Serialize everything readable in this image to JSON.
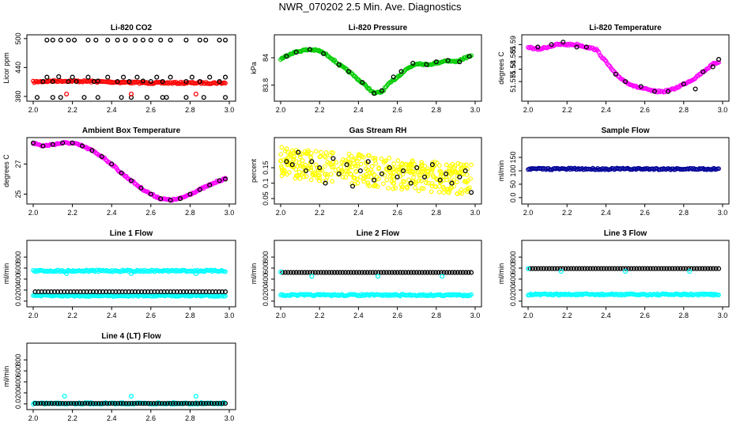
{
  "page_title": "NWR_070202  2.5 Min. Ave. Diagnostics",
  "chart_data": [
    {
      "id": "co2",
      "type": "scatter",
      "title": "Li-820 CO2",
      "ylabel": "Licor ppm",
      "xlim": [
        2.0,
        3.0
      ],
      "ylim": [
        375,
        503
      ],
      "xticks": [
        2.0,
        2.2,
        2.4,
        2.6,
        2.8,
        3.0
      ],
      "yticks": [
        380,
        440,
        500
      ],
      "series": [
        {
          "name": "values",
          "color": "#ff0000",
          "shape": "dense",
          "x0": 2.0,
          "x1": 2.98,
          "y": [
            410,
            412,
            412,
            411,
            410,
            409,
            408,
            408,
            408,
            408,
            408
          ]
        },
        {
          "name": "reference",
          "color": "#000000",
          "shape": "ring",
          "x": [
            2.07,
            2.1,
            2.14,
            2.18,
            2.21,
            2.28,
            2.32,
            2.38,
            2.43,
            2.47,
            2.52,
            2.56,
            2.6,
            2.65,
            2.7,
            2.78,
            2.85,
            2.88,
            2.95,
            2.98
          ],
          "y": [
            497,
            497,
            497,
            497,
            497,
            497,
            497,
            497,
            497,
            497,
            497,
            497,
            497,
            497,
            497,
            497,
            497,
            497,
            497,
            497
          ]
        },
        {
          "name": "reference",
          "color": "#000000",
          "shape": "ring",
          "x": [
            2.05,
            2.07,
            2.1,
            2.13,
            2.18,
            2.2,
            2.22,
            2.28,
            2.31,
            2.33,
            2.38,
            2.43,
            2.46,
            2.49,
            2.53,
            2.56,
            2.6,
            2.63,
            2.66,
            2.7,
            2.78,
            2.81,
            2.85,
            2.9,
            2.95,
            2.98
          ],
          "y": [
            411,
            420,
            411,
            421,
            411,
            420,
            411,
            420,
            411,
            412,
            420,
            411,
            420,
            411,
            420,
            412,
            411,
            420,
            411,
            420,
            411,
            420,
            411,
            420,
            411,
            420
          ]
        },
        {
          "name": "reference",
          "color": "#000000",
          "shape": "ring",
          "x": [
            2.02,
            2.1,
            2.14,
            2.26,
            2.33,
            2.45,
            2.5,
            2.58,
            2.66,
            2.68,
            2.78,
            2.87,
            2.98
          ],
          "y": [
            378,
            378,
            378,
            378,
            378,
            378,
            378,
            378,
            378,
            378,
            378,
            378,
            378
          ]
        },
        {
          "name": "reference",
          "color": "#ff0000",
          "shape": "ring",
          "x": [
            2.17,
            2.5,
            2.83
          ],
          "y": [
            385,
            385,
            385
          ]
        }
      ]
    },
    {
      "id": "pressure",
      "type": "scatter",
      "title": "Li-820 Pressure",
      "ylabel": "kPa",
      "xlim": [
        2.0,
        3.0
      ],
      "ylim": [
        83.7,
        84.15
      ],
      "xticks": [
        2.0,
        2.2,
        2.4,
        2.6,
        2.8,
        3.0
      ],
      "yticks": [
        83.8,
        84.0
      ],
      "series": [
        {
          "name": "values",
          "color": "#00cc00",
          "shape": "dense",
          "x": [
            2.0,
            2.05,
            2.1,
            2.15,
            2.2,
            2.25,
            2.3,
            2.35,
            2.4,
            2.45,
            2.48,
            2.52,
            2.55,
            2.6,
            2.65,
            2.7,
            2.75,
            2.8,
            2.85,
            2.9,
            2.95,
            2.98
          ],
          "y": [
            83.99,
            84.03,
            84.05,
            84.06,
            84.05,
            84.01,
            83.95,
            83.9,
            83.84,
            83.78,
            83.74,
            83.75,
            83.8,
            83.86,
            83.92,
            83.96,
            83.95,
            83.96,
            83.98,
            83.97,
            84.0,
            84.01
          ]
        },
        {
          "name": "reference",
          "color": "#000000",
          "shape": "ring",
          "x": [
            2.03,
            2.08,
            2.15,
            2.22,
            2.3,
            2.35,
            2.42,
            2.48,
            2.52,
            2.58,
            2.62,
            2.68,
            2.75,
            2.8,
            2.86,
            2.92,
            2.97
          ],
          "y": [
            84.01,
            84.04,
            84.06,
            84.03,
            83.95,
            83.9,
            83.82,
            83.74,
            83.76,
            83.86,
            83.9,
            83.96,
            83.95,
            83.97,
            83.98,
            83.97,
            84.01
          ]
        }
      ]
    },
    {
      "id": "licor_temp",
      "type": "scatter",
      "title": "Li-820 Temperature",
      "ylabel": "degrees C",
      "xlim": [
        2.0,
        3.0
      ],
      "ylim": [
        51.568,
        51.593
      ],
      "xticks": [
        2.0,
        2.2,
        2.4,
        2.6,
        2.8,
        3.0
      ],
      "yticks": [
        51.575,
        51.58,
        51.585,
        51.59
      ],
      "series": [
        {
          "name": "values",
          "color": "#ff00ff",
          "shape": "dense",
          "x": [
            2.0,
            2.05,
            2.1,
            2.15,
            2.2,
            2.25,
            2.3,
            2.35,
            2.4,
            2.45,
            2.5,
            2.55,
            2.6,
            2.65,
            2.7,
            2.75,
            2.8,
            2.85,
            2.9,
            2.95,
            2.98
          ],
          "y": [
            51.589,
            51.588,
            51.589,
            51.59,
            51.59,
            51.59,
            51.589,
            51.588,
            51.583,
            51.578,
            51.575,
            51.573,
            51.572,
            51.571,
            51.571,
            51.572,
            51.574,
            51.576,
            51.579,
            51.582,
            51.583
          ]
        },
        {
          "name": "reference",
          "color": "#000000",
          "shape": "ring",
          "x": [
            2.05,
            2.12,
            2.18,
            2.25,
            2.3,
            2.45,
            2.5,
            2.58,
            2.65,
            2.72,
            2.8,
            2.86,
            2.9,
            2.95,
            2.98
          ],
          "y": [
            51.589,
            51.59,
            51.591,
            51.589,
            51.589,
            51.578,
            51.575,
            51.573,
            51.571,
            51.571,
            51.574,
            51.572,
            51.579,
            51.581,
            51.584
          ]
        }
      ]
    },
    {
      "id": "box_temp",
      "type": "scatter",
      "title": "Ambient Box Temperature",
      "ylabel": "degrees C",
      "xlim": [
        2.0,
        3.0
      ],
      "ylim": [
        24.5,
        28.6
      ],
      "xticks": [
        2.0,
        2.2,
        2.4,
        2.6,
        2.8,
        3.0
      ],
      "yticks": [
        25,
        27
      ],
      "series": [
        {
          "name": "values",
          "color": "#ff00ff",
          "shape": "dense",
          "x": [
            2.0,
            2.05,
            2.1,
            2.15,
            2.2,
            2.25,
            2.3,
            2.35,
            2.4,
            2.45,
            2.5,
            2.55,
            2.6,
            2.65,
            2.7,
            2.75,
            2.8,
            2.85,
            2.9,
            2.95,
            2.98
          ],
          "y": [
            28.4,
            28.2,
            28.3,
            28.4,
            28.4,
            28.2,
            27.9,
            27.5,
            27.0,
            26.4,
            25.9,
            25.4,
            25.0,
            24.7,
            24.6,
            24.7,
            25.0,
            25.3,
            25.6,
            25.9,
            26.0
          ]
        },
        {
          "name": "reference",
          "color": "#000000",
          "shape": "ring",
          "x": [
            2.0,
            2.05,
            2.1,
            2.15,
            2.2,
            2.25,
            2.3,
            2.35,
            2.4,
            2.45,
            2.5,
            2.55,
            2.6,
            2.65,
            2.7,
            2.75,
            2.8,
            2.85,
            2.9,
            2.95,
            2.98
          ],
          "y": [
            28.4,
            28.2,
            28.3,
            28.4,
            28.4,
            28.2,
            27.9,
            27.5,
            27.0,
            26.4,
            25.9,
            25.4,
            25.0,
            24.7,
            24.6,
            24.7,
            25.0,
            25.3,
            25.6,
            25.9,
            26.0
          ]
        }
      ]
    },
    {
      "id": "rh",
      "type": "scatter",
      "title": "Gas Stream RH",
      "ylabel": "percent",
      "xlim": [
        2.0,
        3.0
      ],
      "ylim": [
        0.04,
        0.24
      ],
      "xticks": [
        2.0,
        2.2,
        2.4,
        2.6,
        2.8,
        3.0
      ],
      "yticks": [
        0.05,
        0.1,
        0.15
      ],
      "series": [
        {
          "name": "values",
          "color": "#ffff00",
          "shape": "cloud",
          "x": [
            2.0,
            2.2,
            2.4,
            2.6,
            2.8,
            2.98
          ],
          "y": [
            0.17,
            0.155,
            0.145,
            0.13,
            0.12,
            0.11
          ],
          "spread": 0.05
        },
        {
          "name": "reference",
          "color": "#000000",
          "shape": "ring",
          "x": [
            2.03,
            2.06,
            2.09,
            2.13,
            2.16,
            2.2,
            2.23,
            2.27,
            2.3,
            2.34,
            2.37,
            2.41,
            2.45,
            2.48,
            2.52,
            2.56,
            2.6,
            2.63,
            2.67,
            2.7,
            2.74,
            2.78,
            2.82,
            2.85,
            2.88,
            2.92,
            2.95,
            2.98
          ],
          "y": [
            0.17,
            0.16,
            0.2,
            0.14,
            0.17,
            0.15,
            0.1,
            0.18,
            0.13,
            0.16,
            0.09,
            0.14,
            0.17,
            0.11,
            0.13,
            0.15,
            0.12,
            0.14,
            0.1,
            0.15,
            0.12,
            0.16,
            0.11,
            0.13,
            0.1,
            0.12,
            0.14,
            0.07
          ]
        }
      ]
    },
    {
      "id": "sample_flow",
      "type": "scatter",
      "title": "Sample Flow",
      "ylabel": "ml/min",
      "xlim": [
        2.0,
        3.0
      ],
      "ylim": [
        -15,
        215
      ],
      "xticks": [
        2.0,
        2.2,
        2.4,
        2.6,
        2.8,
        3.0
      ],
      "yticks": [
        0,
        50,
        100,
        150
      ],
      "series": [
        {
          "name": "values",
          "color": "#000099",
          "shape": "dense",
          "x0": 2.0,
          "x1": 2.98,
          "y": [
            107,
            107,
            107,
            107,
            107,
            107,
            107,
            107,
            107,
            107,
            107
          ]
        }
      ]
    },
    {
      "id": "line1",
      "type": "scatter",
      "title": "Line 1 Flow",
      "ylabel": "ml/min",
      "xlim": [
        2.0,
        3.0
      ],
      "ylim": [
        -60,
        1060
      ],
      "xticks": [
        2.0,
        2.2,
        2.4,
        2.6,
        2.8,
        3.0
      ],
      "yticks": [
        0,
        200,
        400,
        600,
        800
      ],
      "series": [
        {
          "name": "upper",
          "color": "#00ffff",
          "shape": "dense",
          "x0": 2.0,
          "x1": 2.98,
          "y": [
            550,
            550,
            550,
            550,
            550,
            550,
            550,
            550,
            550,
            550,
            550
          ]
        },
        {
          "name": "lower",
          "color": "#00ffff",
          "shape": "dense",
          "x0": 2.0,
          "x1": 2.98,
          "y": [
            100,
            100,
            100,
            100,
            100,
            100,
            100,
            100,
            100,
            100,
            100
          ]
        },
        {
          "name": "reference",
          "color": "#000000",
          "shape": "ring",
          "x0": 2.01,
          "x1": 2.98,
          "n": 60,
          "yconst": 170
        },
        {
          "name": "outliers",
          "color": "#00ffff",
          "shape": "ring",
          "x": [
            2.17,
            2.5,
            2.83
          ],
          "y": [
            500,
            500,
            500
          ]
        }
      ]
    },
    {
      "id": "line2",
      "type": "scatter",
      "title": "Line 2 Flow",
      "ylabel": "ml/min",
      "xlim": [
        2.0,
        3.0
      ],
      "ylim": [
        -60,
        1060
      ],
      "xticks": [
        2.0,
        2.2,
        2.4,
        2.6,
        2.8,
        3.0
      ],
      "yticks": [
        0,
        200,
        400,
        600,
        800
      ],
      "series": [
        {
          "name": "lower",
          "color": "#00ffff",
          "shape": "dense",
          "x0": 2.0,
          "x1": 2.98,
          "y": [
            110,
            110,
            110,
            110,
            110,
            110,
            110,
            110,
            110,
            110,
            110
          ]
        },
        {
          "name": "reference",
          "color": "#000000",
          "shape": "ring",
          "x0": 2.01,
          "x1": 2.98,
          "n": 70,
          "yconst": 520
        },
        {
          "name": "outliers",
          "color": "#00ffff",
          "shape": "ring",
          "x": [
            2.0,
            2.16,
            2.5,
            2.83
          ],
          "y": [
            530,
            450,
            450,
            450
          ]
        }
      ]
    },
    {
      "id": "line3",
      "type": "scatter",
      "title": "Line 3 Flow",
      "ylabel": "ml/min",
      "xlim": [
        2.0,
        3.0
      ],
      "ylim": [
        -60,
        1060
      ],
      "xticks": [
        2.0,
        2.2,
        2.4,
        2.6,
        2.8,
        3.0
      ],
      "yticks": [
        0,
        200,
        400,
        600,
        800
      ],
      "series": [
        {
          "name": "lower",
          "color": "#00ffff",
          "shape": "dense",
          "x0": 2.0,
          "x1": 2.98,
          "y": [
            120,
            120,
            120,
            120,
            120,
            120,
            120,
            120,
            120,
            120,
            120
          ]
        },
        {
          "name": "reference",
          "color": "#000000",
          "shape": "ring",
          "x0": 2.01,
          "x1": 2.98,
          "n": 70,
          "yconst": 590
        },
        {
          "name": "outliers",
          "color": "#00ffff",
          "shape": "ring",
          "x": [
            2.0,
            2.17,
            2.5,
            2.83
          ],
          "y": [
            590,
            540,
            540,
            540
          ]
        }
      ]
    },
    {
      "id": "line4",
      "type": "scatter",
      "title": "Line 4 (LT) Flow",
      "ylabel": "ml/min",
      "xlim": [
        2.0,
        3.0
      ],
      "ylim": [
        -60,
        1060
      ],
      "xticks": [
        2.0,
        2.2,
        2.4,
        2.6,
        2.8,
        3.0
      ],
      "yticks": [
        0,
        200,
        400,
        600,
        800
      ],
      "series": [
        {
          "name": "values",
          "color": "#00ffff",
          "shape": "dense",
          "x0": 2.0,
          "x1": 2.98,
          "y": [
            10,
            10,
            10,
            10,
            10,
            10,
            10,
            10,
            10,
            10,
            10
          ]
        },
        {
          "name": "reference",
          "color": "#000000",
          "shape": "ring",
          "x0": 2.01,
          "x1": 2.98,
          "n": 70,
          "yconst": 10
        },
        {
          "name": "outliers",
          "color": "#00ffff",
          "shape": "ring",
          "x": [
            2.16,
            2.5,
            2.83
          ],
          "y": [
            140,
            140,
            140
          ]
        }
      ]
    }
  ]
}
